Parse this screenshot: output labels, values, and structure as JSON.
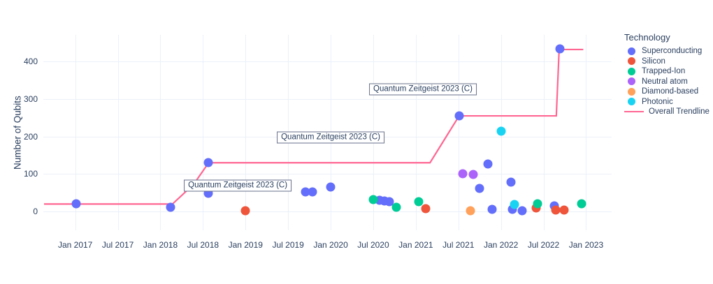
{
  "chart_data": {
    "type": "scatter",
    "title": "",
    "xlabel": "",
    "ylabel": "Number of Qubits",
    "legend_title": "Technology",
    "grid": true,
    "legend_position": "right",
    "x_axis": {
      "note": "x unit = months since Jan 2017",
      "range": [
        -4.5,
        75.6
      ],
      "ticks": [
        {
          "m": 0,
          "label": "Jan 2017"
        },
        {
          "m": 6,
          "label": "Jul 2017"
        },
        {
          "m": 12,
          "label": "Jan 2018"
        },
        {
          "m": 18,
          "label": "Jul 2018"
        },
        {
          "m": 24,
          "label": "Jan 2019"
        },
        {
          "m": 30,
          "label": "Jul 2019"
        },
        {
          "m": 36,
          "label": "Jan 2020"
        },
        {
          "m": 42,
          "label": "Jul 2020"
        },
        {
          "m": 48,
          "label": "Jan 2021"
        },
        {
          "m": 54,
          "label": "Jul 2021"
        },
        {
          "m": 60,
          "label": "Jan 2022"
        },
        {
          "m": 66,
          "label": "Jul 2022"
        },
        {
          "m": 72,
          "label": "Jan 2023"
        }
      ]
    },
    "y_axis": {
      "range": [
        -50,
        471
      ],
      "ticks": [
        0,
        100,
        200,
        300,
        400
      ]
    },
    "series": [
      {
        "name": "Superconducting",
        "color": "#636efa",
        "points": [
          [
            0.1,
            20
          ],
          [
            13.4,
            11
          ],
          [
            16.7,
            73
          ],
          [
            18.8,
            130
          ],
          [
            18.8,
            48
          ],
          [
            32.4,
            52
          ],
          [
            33.4,
            52
          ],
          [
            36.0,
            65
          ],
          [
            42.9,
            30
          ],
          [
            43.6,
            28
          ],
          [
            44.3,
            26
          ],
          [
            54.1,
            255
          ],
          [
            57.0,
            61
          ],
          [
            58.2,
            127
          ],
          [
            58.8,
            6
          ],
          [
            61.4,
            78
          ],
          [
            61.6,
            6
          ],
          [
            63.0,
            2
          ],
          [
            67.5,
            15
          ],
          [
            68.3,
            433
          ]
        ]
      },
      {
        "name": "Silicon",
        "color": "#ef553b",
        "points": [
          [
            24.0,
            2
          ],
          [
            49.4,
            7
          ],
          [
            65.0,
            9
          ],
          [
            67.7,
            4
          ],
          [
            68.9,
            4
          ]
        ]
      },
      {
        "name": "Trapped-Ion",
        "color": "#00cc96",
        "points": [
          [
            42.0,
            32
          ],
          [
            45.3,
            11
          ],
          [
            48.4,
            26
          ],
          [
            65.2,
            21
          ],
          [
            71.4,
            21
          ]
        ]
      },
      {
        "name": "Neutral atom",
        "color": "#ab63fa",
        "points": [
          [
            54.6,
            100
          ],
          [
            56.1,
            99
          ]
        ]
      },
      {
        "name": "Diamond-based",
        "color": "#ffa15a",
        "points": [
          [
            55.7,
            2
          ]
        ]
      },
      {
        "name": "Photonic",
        "color": "#19d3f3",
        "points": [
          [
            60.0,
            214
          ],
          [
            61.9,
            19
          ]
        ]
      }
    ],
    "trendline": {
      "name": "Overall Trendline",
      "color": "#ff6692",
      "points": [
        [
          -4.4,
          20
        ],
        [
          13.7,
          20
        ],
        [
          16.7,
          73
        ],
        [
          18.8,
          130
        ],
        [
          50.0,
          130
        ],
        [
          54.1,
          255
        ],
        [
          67.8,
          255
        ],
        [
          68.2,
          432
        ],
        [
          71.6,
          432
        ]
      ]
    },
    "annotations": [
      {
        "text": "Quantum Zeitgeist 2023 (C)",
        "m": 22.9,
        "q": 69
      },
      {
        "text": "Quantum Zeitgeist 2023 (C)",
        "m": 36.0,
        "q": 198
      },
      {
        "text": "Quantum Zeitgeist 2023 (C)",
        "m": 49.0,
        "q": 325
      }
    ]
  }
}
